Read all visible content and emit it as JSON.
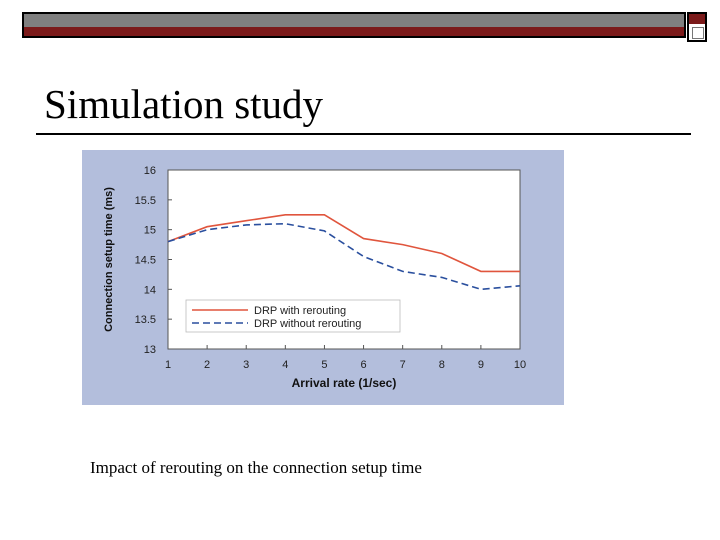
{
  "slide": {
    "title": "Simulation study",
    "caption": "Impact of rerouting on the connection setup time"
  },
  "colors": {
    "accent": "#7b1a1a",
    "panel_bg": "#b3bedc",
    "series_rerouting": "#e0553d",
    "series_no_rerouting": "#2a4f9e"
  },
  "chart_data": {
    "type": "line",
    "xlabel": "Arrival rate (1/sec)",
    "ylabel": "Connection setup time (ms)",
    "xlim": [
      1,
      10
    ],
    "ylim": [
      13,
      16
    ],
    "xticks": [
      "1",
      "2",
      "3",
      "4",
      "5",
      "6",
      "7",
      "8",
      "9",
      "10"
    ],
    "yticks": [
      "13",
      "13.5",
      "14",
      "14.5",
      "15",
      "15.5",
      "16"
    ],
    "grid": false,
    "legend_position": "bottom-left",
    "series": [
      {
        "name": "DRP with rerouting",
        "style": "solid",
        "x": [
          1,
          2,
          3,
          4,
          5,
          6,
          7,
          8,
          9,
          10
        ],
        "values": [
          14.8,
          15.05,
          15.15,
          15.25,
          15.25,
          14.85,
          14.75,
          14.6,
          14.3,
          14.3
        ]
      },
      {
        "name": "DRP without rerouting",
        "style": "dashed",
        "x": [
          1,
          2,
          3,
          4,
          5,
          6,
          7,
          8,
          9,
          10
        ],
        "values": [
          14.8,
          15.0,
          15.08,
          15.1,
          14.98,
          14.55,
          14.3,
          14.2,
          14.0,
          14.06
        ]
      }
    ]
  }
}
